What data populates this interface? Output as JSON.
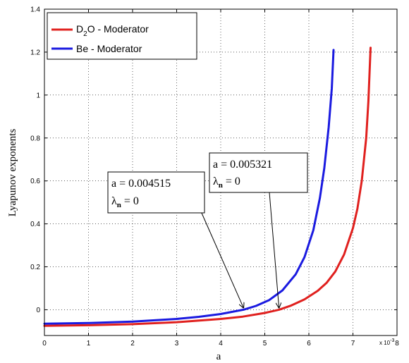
{
  "chart_data": {
    "type": "line",
    "xlabel": "a",
    "ylabel": "Lyapunov exponents",
    "x_exponent": "x 10",
    "x_exponent_power": "-3",
    "xlim": [
      0,
      8
    ],
    "ylim": [
      -0.12,
      1.4
    ],
    "x_ticks": [
      "0",
      "1",
      "2",
      "3",
      "4",
      "5",
      "6",
      "7",
      "8"
    ],
    "y_ticks": [
      "0",
      "0.2",
      "0.4",
      "0.6",
      "0.8",
      "1",
      "1.2",
      "1.4"
    ],
    "grid": true,
    "legend_position": "top-left",
    "series": [
      {
        "name_main": "D",
        "name_sub": "2",
        "name_rest": "O - Moderator",
        "color": "#e0201e",
        "x": [
          0,
          1,
          2,
          3,
          4,
          4.5,
          5,
          5.321,
          5.6,
          5.9,
          6.2,
          6.4,
          6.6,
          6.8,
          7.0,
          7.1,
          7.2,
          7.3,
          7.35,
          7.4
        ],
        "y": [
          -0.075,
          -0.072,
          -0.067,
          -0.058,
          -0.043,
          -0.032,
          -0.015,
          0.0,
          0.02,
          0.048,
          0.088,
          0.125,
          0.178,
          0.258,
          0.38,
          0.47,
          0.6,
          0.8,
          0.97,
          1.22
        ]
      },
      {
        "name_main": "Be - Moderator",
        "name_sub": "",
        "name_rest": "",
        "color": "#1a1ae0",
        "x": [
          0,
          1,
          2,
          3,
          3.5,
          4,
          4.515,
          4.8,
          5.1,
          5.4,
          5.7,
          5.9,
          6.1,
          6.25,
          6.35,
          6.45,
          6.52,
          6.56
        ],
        "y": [
          -0.065,
          -0.062,
          -0.055,
          -0.043,
          -0.033,
          -0.02,
          0.0,
          0.018,
          0.045,
          0.09,
          0.165,
          0.245,
          0.37,
          0.52,
          0.66,
          0.85,
          1.03,
          1.21
        ]
      }
    ],
    "annotations": [
      {
        "line1": "a = 0.004515",
        "lambda": "λ",
        "sub": "n",
        "line2_rest": " = 0",
        "target": [
          4.515,
          0.0
        ]
      },
      {
        "line1": "a = 0.005321",
        "lambda": "λ",
        "sub": "n",
        "line2_rest": " = 0",
        "target": [
          5.321,
          0.0
        ]
      }
    ]
  }
}
